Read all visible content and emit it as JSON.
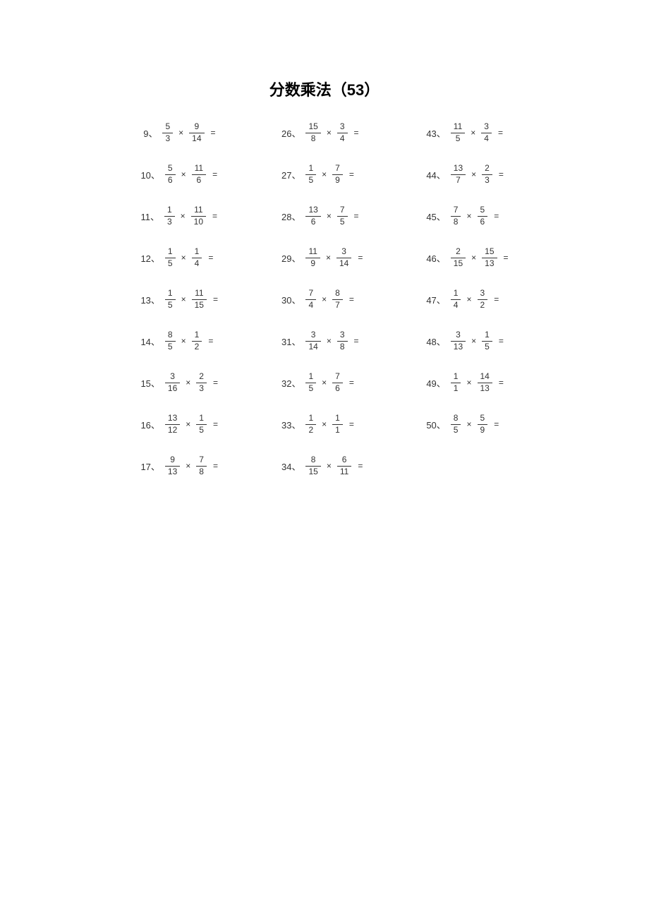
{
  "title": "分数乘法（53）",
  "columns": [
    [
      {
        "n": "9",
        "a_num": "5",
        "a_den": "3",
        "b_num": "9",
        "b_den": "14"
      },
      {
        "n": "10",
        "a_num": "5",
        "a_den": "6",
        "b_num": "11",
        "b_den": "6"
      },
      {
        "n": "11",
        "a_num": "1",
        "a_den": "3",
        "b_num": "11",
        "b_den": "10"
      },
      {
        "n": "12",
        "a_num": "1",
        "a_den": "5",
        "b_num": "1",
        "b_den": "4"
      },
      {
        "n": "13",
        "a_num": "1",
        "a_den": "5",
        "b_num": "11",
        "b_den": "15"
      },
      {
        "n": "14",
        "a_num": "8",
        "a_den": "5",
        "b_num": "1",
        "b_den": "2"
      },
      {
        "n": "15",
        "a_num": "3",
        "a_den": "16",
        "b_num": "2",
        "b_den": "3"
      },
      {
        "n": "16",
        "a_num": "13",
        "a_den": "12",
        "b_num": "1",
        "b_den": "5"
      },
      {
        "n": "17",
        "a_num": "9",
        "a_den": "13",
        "b_num": "7",
        "b_den": "8"
      }
    ],
    [
      {
        "n": "26",
        "a_num": "15",
        "a_den": "8",
        "b_num": "3",
        "b_den": "4"
      },
      {
        "n": "27",
        "a_num": "1",
        "a_den": "5",
        "b_num": "7",
        "b_den": "9"
      },
      {
        "n": "28",
        "a_num": "13",
        "a_den": "6",
        "b_num": "7",
        "b_den": "5"
      },
      {
        "n": "29",
        "a_num": "11",
        "a_den": "9",
        "b_num": "3",
        "b_den": "14"
      },
      {
        "n": "30",
        "a_num": "7",
        "a_den": "4",
        "b_num": "8",
        "b_den": "7"
      },
      {
        "n": "31",
        "a_num": "3",
        "a_den": "14",
        "b_num": "3",
        "b_den": "8"
      },
      {
        "n": "32",
        "a_num": "1",
        "a_den": "5",
        "b_num": "7",
        "b_den": "6"
      },
      {
        "n": "33",
        "a_num": "1",
        "a_den": "2",
        "b_num": "1",
        "b_den": "1"
      },
      {
        "n": "34",
        "a_num": "8",
        "a_den": "15",
        "b_num": "6",
        "b_den": "11"
      }
    ],
    [
      {
        "n": "43",
        "a_num": "11",
        "a_den": "5",
        "b_num": "3",
        "b_den": "4"
      },
      {
        "n": "44",
        "a_num": "13",
        "a_den": "7",
        "b_num": "2",
        "b_den": "3"
      },
      {
        "n": "45",
        "a_num": "7",
        "a_den": "8",
        "b_num": "5",
        "b_den": "6"
      },
      {
        "n": "46",
        "a_num": "2",
        "a_den": "15",
        "b_num": "15",
        "b_den": "13"
      },
      {
        "n": "47",
        "a_num": "1",
        "a_den": "4",
        "b_num": "3",
        "b_den": "2"
      },
      {
        "n": "48",
        "a_num": "3",
        "a_den": "13",
        "b_num": "1",
        "b_den": "5"
      },
      {
        "n": "49",
        "a_num": "1",
        "a_den": "1",
        "b_num": "14",
        "b_den": "13"
      },
      {
        "n": "50",
        "a_num": "8",
        "a_den": "5",
        "b_num": "5",
        "b_den": "9"
      }
    ]
  ],
  "labels": {
    "sep": "、",
    "times": "×",
    "equals": "="
  },
  "style": {
    "background_color": "#ffffff",
    "text_color": "#333333",
    "title_color": "#000000",
    "title_fontsize": 22,
    "body_fontsize": 13,
    "fraction_fontsize": 12,
    "row_gap": 27,
    "col_gap": 90
  }
}
